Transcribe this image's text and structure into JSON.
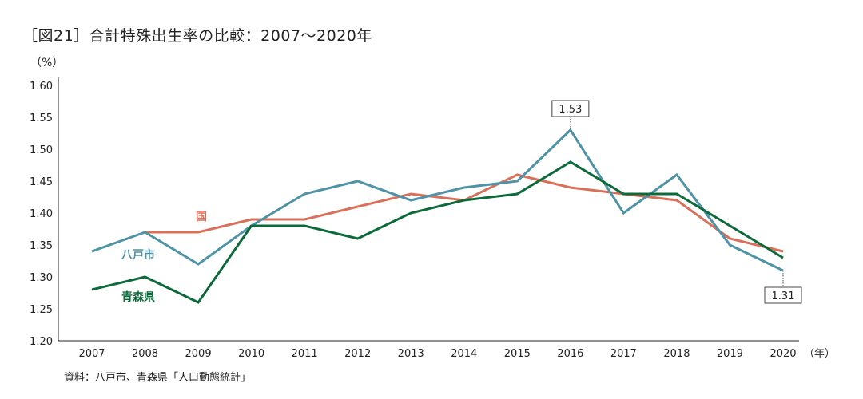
{
  "title": "［図21］合計特殊出生率の比較：2007〜2020年",
  "source": "資料：八戸市、青森県「人口動態統計」",
  "chart_data": {
    "type": "line",
    "ylabel": "（%）",
    "xunit": "（年）",
    "ylim": [
      1.2,
      1.6
    ],
    "yticks": [
      "1.20",
      "1.25",
      "1.30",
      "1.35",
      "1.40",
      "1.45",
      "1.50",
      "1.55",
      "1.60"
    ],
    "x": [
      "2007",
      "2008",
      "2009",
      "2010",
      "2011",
      "2012",
      "2013",
      "2014",
      "2015",
      "2016",
      "2017",
      "2018",
      "2019",
      "2020"
    ],
    "grid": false,
    "series": [
      {
        "name": "国",
        "color": "#d9705a",
        "values": [
          null,
          1.37,
          1.37,
          1.39,
          1.39,
          1.41,
          1.43,
          1.42,
          1.46,
          1.44,
          1.43,
          1.42,
          1.36,
          1.34
        ]
      },
      {
        "name": "八戸市",
        "color": "#4f93a6",
        "values": [
          1.34,
          1.37,
          1.32,
          1.38,
          1.43,
          1.45,
          1.42,
          1.44,
          1.45,
          1.53,
          1.4,
          1.46,
          1.35,
          1.31
        ]
      },
      {
        "name": "青森県",
        "color": "#0d6a3a",
        "values": [
          1.28,
          1.3,
          1.26,
          1.38,
          1.38,
          1.36,
          1.4,
          1.42,
          1.43,
          1.48,
          1.43,
          1.43,
          1.38,
          1.33
        ]
      }
    ],
    "annotations": [
      {
        "series": "八戸市",
        "x": "2016",
        "text": "1.53",
        "position": "above"
      },
      {
        "series": "八戸市",
        "x": "2020",
        "text": "1.31",
        "position": "below"
      }
    ]
  }
}
